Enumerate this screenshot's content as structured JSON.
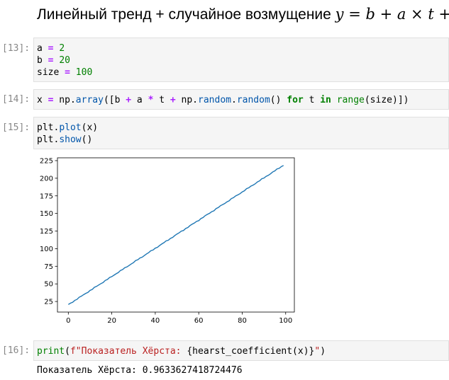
{
  "heading": {
    "text": "Линейный тренд + случайное возмущение ",
    "formula": "y = b + a × t + ϵ"
  },
  "cells": [
    {
      "prompt": "[13]:",
      "lines": [
        [
          {
            "t": "a",
            "c": "plain"
          },
          {
            "t": " ",
            "c": "plain"
          },
          {
            "t": "=",
            "c": "op"
          },
          {
            "t": " ",
            "c": "plain"
          },
          {
            "t": "2",
            "c": "num"
          }
        ],
        [
          {
            "t": "b",
            "c": "plain"
          },
          {
            "t": " ",
            "c": "plain"
          },
          {
            "t": "=",
            "c": "op"
          },
          {
            "t": " ",
            "c": "plain"
          },
          {
            "t": "20",
            "c": "num"
          }
        ],
        [
          {
            "t": "size",
            "c": "plain"
          },
          {
            "t": " ",
            "c": "plain"
          },
          {
            "t": "=",
            "c": "op"
          },
          {
            "t": " ",
            "c": "plain"
          },
          {
            "t": "100",
            "c": "num"
          }
        ]
      ]
    },
    {
      "prompt": "[14]:",
      "lines": [
        [
          {
            "t": "x",
            "c": "plain"
          },
          {
            "t": " ",
            "c": "plain"
          },
          {
            "t": "=",
            "c": "op"
          },
          {
            "t": " np.",
            "c": "plain"
          },
          {
            "t": "array",
            "c": "fn"
          },
          {
            "t": "([b ",
            "c": "plain"
          },
          {
            "t": "+",
            "c": "op"
          },
          {
            "t": " a ",
            "c": "plain"
          },
          {
            "t": "*",
            "c": "op"
          },
          {
            "t": " t ",
            "c": "plain"
          },
          {
            "t": "+",
            "c": "op"
          },
          {
            "t": " np.",
            "c": "plain"
          },
          {
            "t": "random",
            "c": "fn"
          },
          {
            "t": ".",
            "c": "plain"
          },
          {
            "t": "random",
            "c": "fn"
          },
          {
            "t": "() ",
            "c": "plain"
          },
          {
            "t": "for",
            "c": "kw"
          },
          {
            "t": " t ",
            "c": "plain"
          },
          {
            "t": "in",
            "c": "kw"
          },
          {
            "t": " ",
            "c": "plain"
          },
          {
            "t": "range",
            "c": "bi"
          },
          {
            "t": "(size)])",
            "c": "plain"
          }
        ]
      ]
    },
    {
      "prompt": "[15]:",
      "lines": [
        [
          {
            "t": "plt.",
            "c": "plain"
          },
          {
            "t": "plot",
            "c": "fn"
          },
          {
            "t": "(x)",
            "c": "plain"
          }
        ],
        [
          {
            "t": "plt.",
            "c": "plain"
          },
          {
            "t": "show",
            "c": "fn"
          },
          {
            "t": "()",
            "c": "plain"
          }
        ]
      ]
    },
    {
      "prompt": "[16]:",
      "lines": [
        [
          {
            "t": "print",
            "c": "bi"
          },
          {
            "t": "(",
            "c": "plain"
          },
          {
            "t": "f\"Показатель Хёрста: ",
            "c": "str"
          },
          {
            "t": "{hearst_coefficient(x)}",
            "c": "plain"
          },
          {
            "t": "\"",
            "c": "str"
          },
          {
            "t": ")",
            "c": "plain"
          }
        ]
      ]
    }
  ],
  "output": {
    "text": "Показатель Хёрста: 0.9633627418724476"
  },
  "chart_data": {
    "type": "line",
    "title": "",
    "xlabel": "",
    "ylabel": "",
    "x_start": 0,
    "x_end": 99,
    "y_start": 20.5,
    "y_end": 218.5,
    "xlim": [
      -5,
      104
    ],
    "ylim": [
      10,
      229
    ],
    "xticks": [
      "0",
      "20",
      "40",
      "60",
      "80",
      "100"
    ],
    "yticks": [
      "25",
      "50",
      "75",
      "100",
      "125",
      "150",
      "175",
      "200",
      "225"
    ],
    "series": [
      {
        "name": "x",
        "color": "#1f77b4"
      }
    ]
  }
}
